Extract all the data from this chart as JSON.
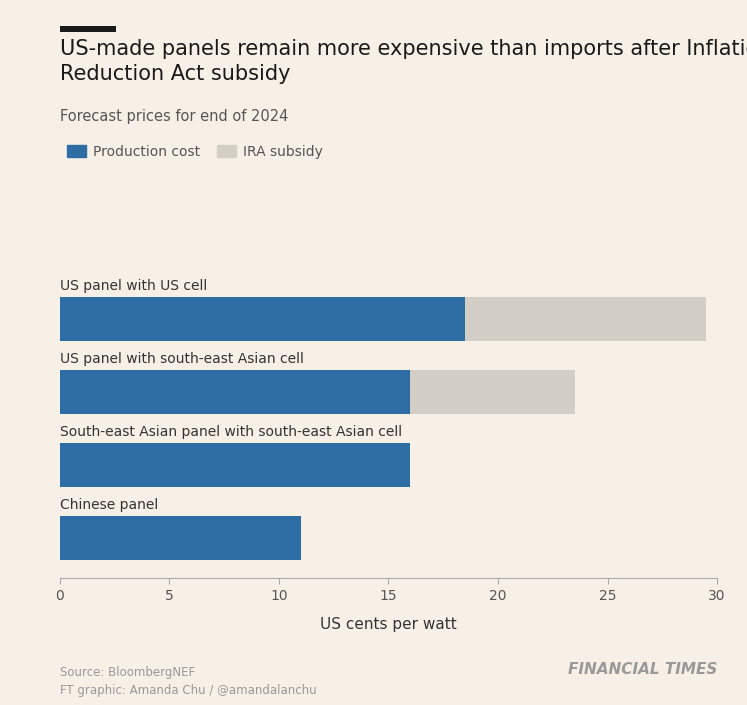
{
  "title": "US-made panels remain more expensive than imports after Inflation\nReduction Act subsidy",
  "subtitle": "Forecast prices for end of 2024",
  "xlabel": "US cents per watt",
  "categories": [
    "Chinese panel",
    "South-east Asian panel with south-east Asian cell",
    "US panel with south-east Asian cell",
    "US panel with US cell"
  ],
  "production_cost": [
    11,
    16,
    16,
    18.5
  ],
  "ira_subsidy_total": [
    0,
    0,
    23.5,
    29.5
  ],
  "production_color": "#2e6da4",
  "subsidy_color": "#d3cec6",
  "background_color": "#f7f0e6",
  "title_fontsize": 15,
  "subtitle_fontsize": 10.5,
  "label_fontsize": 10,
  "tick_fontsize": 10,
  "source_text": "Source: BloombergNEF\nFT graphic: Amanda Chu / @amandalanchu",
  "ft_label": "FINANCIAL TIMES",
  "xlim": [
    0,
    30
  ],
  "xticks": [
    0,
    5,
    10,
    15,
    20,
    25,
    30
  ],
  "legend_labels": [
    "Production cost",
    "IRA subsidy"
  ]
}
